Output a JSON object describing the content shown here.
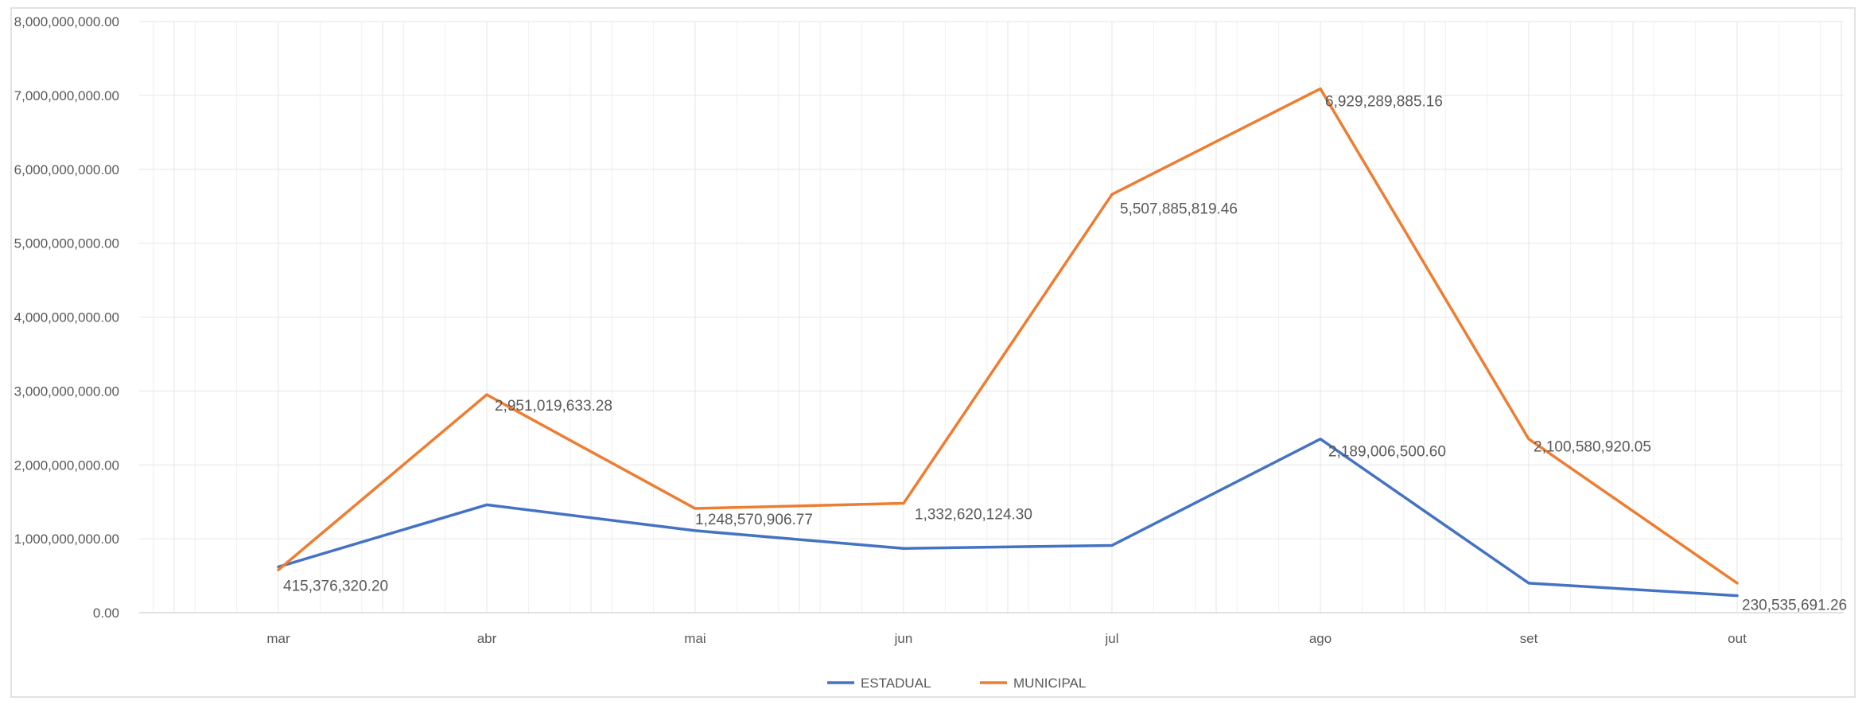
{
  "chart_data": {
    "type": "line",
    "title": "",
    "xlabel": "",
    "ylabel": "",
    "categories": [
      "mar",
      "abr",
      "mai",
      "jun",
      "jul",
      "ago",
      "set",
      "out"
    ],
    "ylim": [
      0,
      8000000000
    ],
    "yticks": [
      0,
      1000000000,
      2000000000,
      3000000000,
      4000000000,
      5000000000,
      6000000000,
      7000000000,
      8000000000
    ],
    "ytick_labels": [
      "0.00",
      "1,000,000,000.00",
      "2,000,000,000.00",
      "3,000,000,000.00",
      "4,000,000,000.00",
      "5,000,000,000.00",
      "6,000,000,000.00",
      "7,000,000,000.00",
      "8,000,000,000.00"
    ],
    "grid": true,
    "legend_position": "bottom",
    "series": [
      {
        "name": "ESTADUAL",
        "color": "#4472C4",
        "values": [
          620000000,
          1460000000,
          1110000000,
          870000000,
          910000000,
          2350000000,
          400000000,
          230535691.26
        ]
      },
      {
        "name": "MUNICIPAL",
        "color": "#ED7D31",
        "values": [
          580000000,
          2950000000,
          1410000000,
          1480000000,
          5660000000,
          7090000000,
          2350000000,
          400000000
        ]
      }
    ],
    "data_labels": [
      {
        "category_index": 0,
        "value": 415376320.2,
        "text": "415,376,320.20"
      },
      {
        "category_index": 1,
        "value": 2951019633.28,
        "text": "2,951,019,633.28"
      },
      {
        "category_index": 2,
        "value": 1248570906.77,
        "text": "1,248,570,906.77"
      },
      {
        "category_index": 3,
        "value": 1332620124.3,
        "text": "1,332,620,124.30"
      },
      {
        "category_index": 4,
        "value": 5507885819.46,
        "text": "5,507,885,819.46"
      },
      {
        "category_index": 5,
        "value": 6929289885.16,
        "text": "6,929,289,885.16"
      },
      {
        "category_index": 5,
        "value": 2189006500.6,
        "text": "2,189,006,500.60"
      },
      {
        "category_index": 6,
        "value": 2100580920.05,
        "text": "2,100,580,920.05"
      },
      {
        "category_index": 7,
        "value": 230535691.26,
        "text": "230,535,691.26"
      }
    ]
  }
}
